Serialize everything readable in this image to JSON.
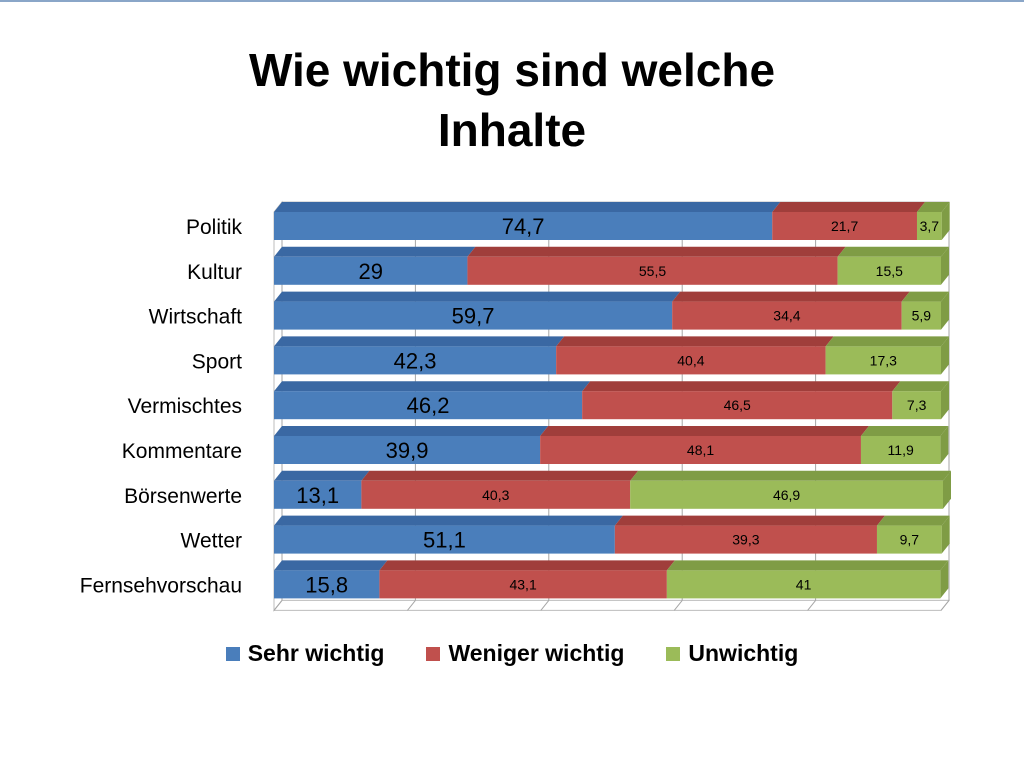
{
  "slide": {
    "title_line1": "Wie wichtig sind welche",
    "title_line2": "Inhalte"
  },
  "chart_data": {
    "type": "bar",
    "orientation": "horizontal",
    "stacked": true,
    "percent_stacked": true,
    "three_d": true,
    "grid": true,
    "legend_position": "bottom",
    "categories": [
      "Politik",
      "Kultur",
      "Wirtschaft",
      "Sport",
      "Vermischtes",
      "Kommentare",
      "Börsenwerte",
      "Wetter",
      "Fernsehvorschau"
    ],
    "series": [
      {
        "name": "Sehr wichtig",
        "color": "#4a7ebb",
        "top_color": "#3a68a3",
        "values": [
          74.7,
          29,
          59.7,
          42.3,
          46.2,
          39.9,
          13.1,
          51.1,
          15.8
        ],
        "labels": [
          "74,7",
          "29",
          "59,7",
          "42,3",
          "46,2",
          "39,9",
          "13,1",
          "51,1",
          "15,8"
        ]
      },
      {
        "name": "Weniger wichtig",
        "color": "#c0504d",
        "top_color": "#a03e3b",
        "values": [
          21.7,
          55.5,
          34.4,
          40.4,
          46.5,
          48.1,
          40.3,
          39.3,
          43.1
        ],
        "labels": [
          "21,7",
          "55,5",
          "34,4",
          "40,4",
          "46,5",
          "48,1",
          "40,3",
          "39,3",
          "43,1"
        ]
      },
      {
        "name": "Unwichtig",
        "color": "#9bbb59",
        "top_color": "#7f9c45",
        "values": [
          3.7,
          15.5,
          5.9,
          17.3,
          7.3,
          11.9,
          46.9,
          9.7,
          41
        ],
        "labels": [
          "3,7",
          "15,5",
          "5,9",
          "17,3",
          "7,3",
          "11,9",
          "46,9",
          "9,7",
          "41"
        ]
      }
    ]
  }
}
